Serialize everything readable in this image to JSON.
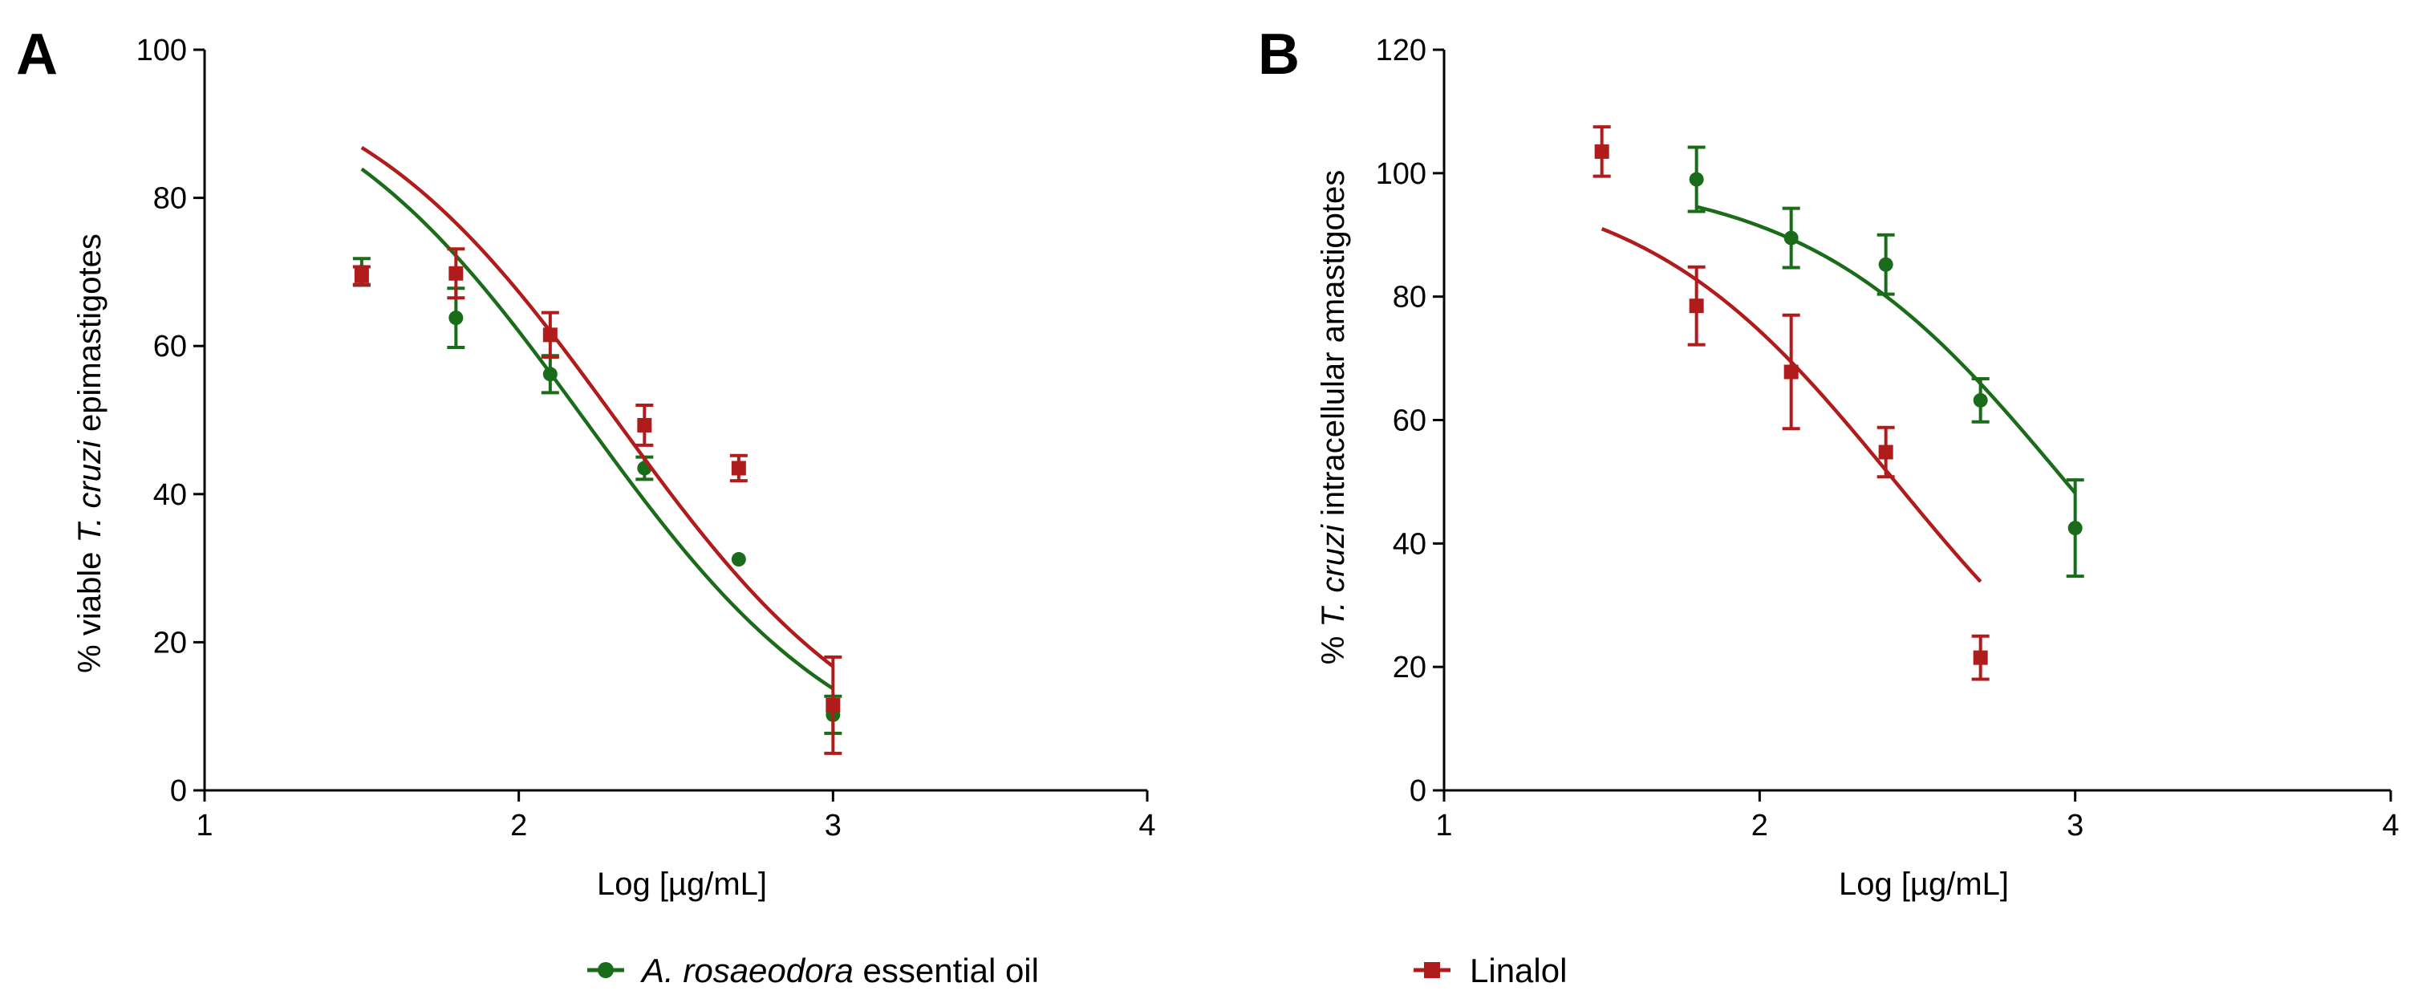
{
  "chart_data": [
    {
      "panel": "A",
      "type": "scatter",
      "xlabel": "Log [µg/mL]",
      "ylabel_parts": [
        "% viable ",
        "T. cruzi",
        " epimastigotes"
      ],
      "xlim": [
        1,
        4
      ],
      "ylim": [
        0,
        100
      ],
      "xticks": [
        1,
        2,
        3,
        4
      ],
      "yticks": [
        0,
        20,
        40,
        60,
        80,
        100
      ],
      "series": [
        {
          "name": "A. rosaeodora essential oil",
          "color": "#1a6b1a",
          "marker": "circle",
          "points": [
            {
              "x": 1.5,
              "y": 70,
              "err": 1.8
            },
            {
              "x": 1.8,
              "y": 63.8,
              "err": 4
            },
            {
              "x": 2.1,
              "y": 56.2,
              "err": 2.5
            },
            {
              "x": 2.4,
              "y": 43.5,
              "err": 1.5
            },
            {
              "x": 2.7,
              "y": 31.2,
              "err": 0
            },
            {
              "x": 3.0,
              "y": 10.2,
              "err": 2.5
            }
          ],
          "fit": {
            "top": 100,
            "bottom": 0,
            "logIC50": 2.21,
            "hill": -1.01,
            "xrange": [
              1.5,
              3.0
            ]
          }
        },
        {
          "name": "Linalol",
          "color": "#b01c1c",
          "marker": "square",
          "points": [
            {
              "x": 1.5,
              "y": 69.5,
              "err": 1.2
            },
            {
              "x": 1.8,
              "y": 69.8,
              "err": 3.3
            },
            {
              "x": 2.1,
              "y": 61.5,
              "err": 3
            },
            {
              "x": 2.4,
              "y": 49.3,
              "err": 2.7
            },
            {
              "x": 2.7,
              "y": 43.5,
              "err": 1.7
            },
            {
              "x": 3.0,
              "y": 11.5,
              "err": 6.5
            }
          ],
          "fit": {
            "top": 100,
            "bottom": 0,
            "logIC50": 2.31,
            "hill": -1.01,
            "xrange": [
              1.5,
              3.0
            ]
          }
        }
      ]
    },
    {
      "panel": "B",
      "type": "scatter",
      "xlabel": "Log [µg/mL]",
      "ylabel_parts": [
        "% ",
        "T. cruzi",
        " intracellular amastigotes"
      ],
      "xlim": [
        1,
        4
      ],
      "ylim": [
        0,
        120
      ],
      "xticks": [
        1,
        2,
        3,
        4
      ],
      "yticks": [
        0,
        20,
        40,
        60,
        80,
        100,
        120
      ],
      "series": [
        {
          "name": "A. rosaeodora essential oil",
          "color": "#1a6b1a",
          "marker": "circle",
          "points": [
            {
              "x": 1.8,
              "y": 99,
              "err": 5.2
            },
            {
              "x": 2.1,
              "y": 89.5,
              "err": 4.8
            },
            {
              "x": 2.4,
              "y": 85.2,
              "err": 4.8
            },
            {
              "x": 2.7,
              "y": 63.2,
              "err": 3.5
            },
            {
              "x": 3.0,
              "y": 42.5,
              "err": 7.8
            }
          ],
          "fit": {
            "top": 100,
            "bottom": 0,
            "logIC50": 2.97,
            "hill": -1.06,
            "xrange": [
              1.8,
              3.0
            ]
          }
        },
        {
          "name": "Linalol",
          "color": "#b01c1c",
          "marker": "square",
          "points": [
            {
              "x": 1.5,
              "y": 103.5,
              "err": 4
            },
            {
              "x": 1.8,
              "y": 78.5,
              "err": 6.3
            },
            {
              "x": 2.1,
              "y": 67.8,
              "err": 9.2
            },
            {
              "x": 2.4,
              "y": 54.8,
              "err": 4
            },
            {
              "x": 2.7,
              "y": 21.5,
              "err": 3.5
            }
          ],
          "fit": {
            "top": 100,
            "bottom": 0,
            "logIC50": 2.43,
            "hill": -1.08,
            "xrange": [
              1.5,
              2.7
            ]
          }
        }
      ]
    }
  ],
  "legend": [
    {
      "label": "A. rosaeodora",
      "suffix": " essential oil",
      "color": "#1a6b1a",
      "marker": "circle"
    },
    {
      "label": "Linalol",
      "suffix": "",
      "color": "#b01c1c",
      "marker": "square"
    }
  ]
}
